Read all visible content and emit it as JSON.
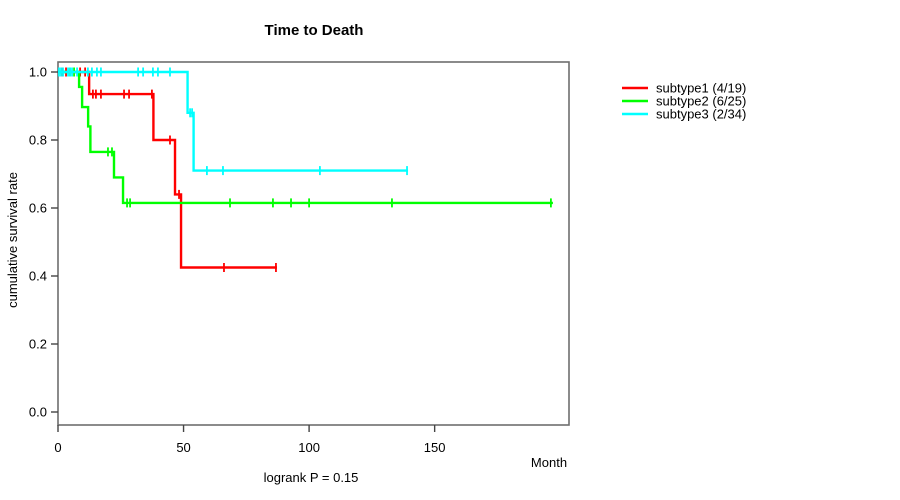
{
  "chart_data": {
    "type": "line",
    "variant": "kaplan-meier-step",
    "title": "Time to Death",
    "xlabel": "Month",
    "ylabel": "cumulative survival rate",
    "annotation": "logrank P = 0.15",
    "x_ticks": [
      0,
      50,
      100,
      150
    ],
    "y_ticks": [
      0.0,
      0.2,
      0.4,
      0.6,
      0.8,
      1.0
    ],
    "xlim": [
      0,
      203
    ],
    "ylim": [
      0,
      1
    ],
    "grid": false,
    "legend_position": "right-outside",
    "series": [
      {
        "name": "subtype1 (4/19)",
        "color": "#FF0000",
        "steps": [
          [
            0,
            1.0
          ],
          [
            12.4,
            0.935
          ],
          [
            38.0,
            0.8
          ],
          [
            46.6,
            0.64
          ],
          [
            49.0,
            0.425
          ]
        ],
        "end": 87.2,
        "censors": [
          [
            1.6,
            1.0
          ],
          [
            3.2,
            1.0
          ],
          [
            8.8,
            1.0
          ],
          [
            10.8,
            1.0
          ],
          [
            13.9,
            0.935
          ],
          [
            15.1,
            0.935
          ],
          [
            17.1,
            0.935
          ],
          [
            26.3,
            0.935
          ],
          [
            28.3,
            0.935
          ],
          [
            37.4,
            0.935
          ],
          [
            44.6,
            0.8
          ],
          [
            48.2,
            0.64
          ],
          [
            66.1,
            0.425
          ],
          [
            86.8,
            0.425
          ]
        ]
      },
      {
        "name": "subtype2 (6/25)",
        "color": "#00FF00",
        "steps": [
          [
            0,
            1.0
          ],
          [
            8.4,
            0.956
          ],
          [
            9.6,
            0.897
          ],
          [
            12.0,
            0.84
          ],
          [
            12.9,
            0.765
          ],
          [
            22.3,
            0.69
          ],
          [
            25.9,
            0.615
          ]
        ],
        "end": 197.1,
        "censors": [
          [
            4.8,
            1.0
          ],
          [
            6.4,
            1.0
          ],
          [
            19.9,
            0.765
          ],
          [
            21.5,
            0.765
          ],
          [
            27.5,
            0.615
          ],
          [
            28.7,
            0.615
          ],
          [
            68.5,
            0.615
          ],
          [
            85.6,
            0.615
          ],
          [
            92.8,
            0.615
          ],
          [
            100.0,
            0.615
          ],
          [
            133.0,
            0.615
          ],
          [
            196.3,
            0.615
          ]
        ]
      },
      {
        "name": "subtype3 (2/34)",
        "color": "#00FFFF",
        "steps": [
          [
            0,
            1.0
          ],
          [
            51.6,
            0.88
          ],
          [
            54.0,
            0.71
          ]
        ],
        "end": 139.4,
        "censors": [
          [
            0.4,
            1.0
          ],
          [
            1.2,
            1.0
          ],
          [
            2.0,
            1.0
          ],
          [
            4.0,
            1.0
          ],
          [
            4.8,
            1.0
          ],
          [
            5.6,
            1.0
          ],
          [
            7.6,
            1.0
          ],
          [
            11.9,
            1.0
          ],
          [
            13.5,
            1.0
          ],
          [
            15.5,
            1.0
          ],
          [
            17.1,
            1.0
          ],
          [
            31.9,
            1.0
          ],
          [
            33.9,
            1.0
          ],
          [
            37.8,
            1.0
          ],
          [
            39.8,
            1.0
          ],
          [
            44.6,
            1.0
          ],
          [
            52.6,
            0.88
          ],
          [
            53.4,
            0.88
          ],
          [
            59.3,
            0.71
          ],
          [
            65.7,
            0.71
          ],
          [
            104.3,
            0.71
          ],
          [
            139.0,
            0.71
          ]
        ]
      }
    ]
  }
}
